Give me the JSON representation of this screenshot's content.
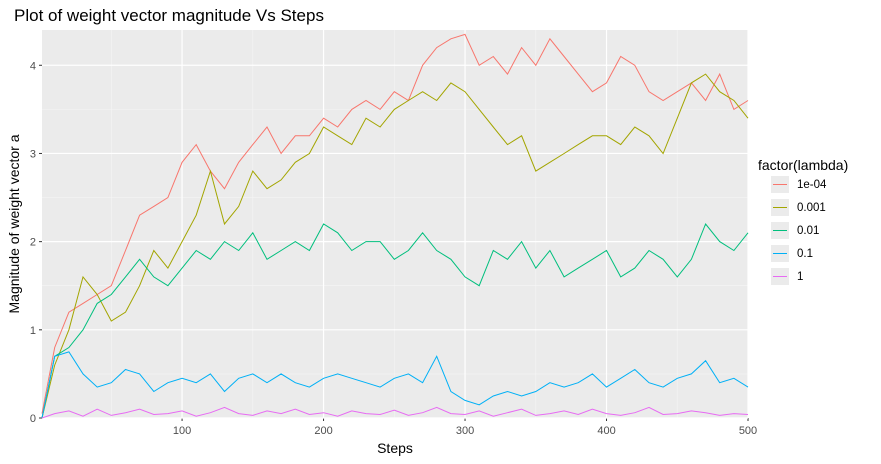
{
  "chart_data": {
    "type": "line",
    "title": "Plot of weight vector magnitude Vs Steps",
    "xlabel": "Steps",
    "ylabel": "Magnitude of weight vector a",
    "xlim": [
      1,
      500
    ],
    "ylim": [
      0,
      4.4
    ],
    "x_ticks": [
      100,
      200,
      300,
      400,
      500
    ],
    "y_ticks": [
      0,
      1,
      2,
      3,
      4
    ],
    "grid": true,
    "legend": {
      "title": "factor(lambda)",
      "position": "right"
    },
    "x": [
      1,
      10,
      20,
      30,
      40,
      50,
      60,
      70,
      80,
      90,
      100,
      110,
      120,
      130,
      140,
      150,
      160,
      170,
      180,
      190,
      200,
      210,
      220,
      230,
      240,
      250,
      260,
      270,
      280,
      290,
      300,
      310,
      320,
      330,
      340,
      350,
      360,
      370,
      380,
      390,
      400,
      410,
      420,
      430,
      440,
      450,
      460,
      470,
      480,
      490,
      500
    ],
    "series": [
      {
        "name": "1e-04",
        "color": "#F8766D",
        "values": [
          0.05,
          0.8,
          1.2,
          1.3,
          1.4,
          1.5,
          1.9,
          2.3,
          2.4,
          2.5,
          2.9,
          3.1,
          2.8,
          2.6,
          2.9,
          3.1,
          3.3,
          3.0,
          3.2,
          3.2,
          3.4,
          3.3,
          3.5,
          3.6,
          3.5,
          3.7,
          3.6,
          4.0,
          4.2,
          4.3,
          4.35,
          4.0,
          4.1,
          3.9,
          4.2,
          4.0,
          4.3,
          4.1,
          3.9,
          3.7,
          3.8,
          4.1,
          4.0,
          3.7,
          3.6,
          3.7,
          3.8,
          3.6,
          3.9,
          3.5,
          3.6
        ]
      },
      {
        "name": "0.001",
        "color": "#A3A500",
        "values": [
          0.0,
          0.6,
          1.0,
          1.6,
          1.4,
          1.1,
          1.2,
          1.5,
          1.9,
          1.7,
          2.0,
          2.3,
          2.8,
          2.2,
          2.4,
          2.8,
          2.6,
          2.7,
          2.9,
          3.0,
          3.3,
          3.2,
          3.1,
          3.4,
          3.3,
          3.5,
          3.6,
          3.7,
          3.6,
          3.8,
          3.7,
          3.5,
          3.3,
          3.1,
          3.2,
          2.8,
          2.9,
          3.0,
          3.1,
          3.2,
          3.2,
          3.1,
          3.3,
          3.2,
          3.0,
          3.4,
          3.8,
          3.9,
          3.7,
          3.6,
          3.4
        ]
      },
      {
        "name": "0.01",
        "color": "#00BF7D",
        "values": [
          0.0,
          0.7,
          0.8,
          1.0,
          1.3,
          1.4,
          1.6,
          1.8,
          1.6,
          1.5,
          1.7,
          1.9,
          1.8,
          2.0,
          1.9,
          2.1,
          1.8,
          1.9,
          2.0,
          1.9,
          2.2,
          2.1,
          1.9,
          2.0,
          2.0,
          1.8,
          1.9,
          2.1,
          1.9,
          1.8,
          1.6,
          1.5,
          1.9,
          1.8,
          2.0,
          1.7,
          1.9,
          1.6,
          1.7,
          1.8,
          1.9,
          1.6,
          1.7,
          1.9,
          1.8,
          1.6,
          1.8,
          2.2,
          2.0,
          1.9,
          2.1
        ]
      },
      {
        "name": "0.1",
        "color": "#00B0F6",
        "values": [
          0.0,
          0.7,
          0.75,
          0.5,
          0.35,
          0.4,
          0.55,
          0.5,
          0.3,
          0.4,
          0.45,
          0.4,
          0.5,
          0.3,
          0.45,
          0.5,
          0.4,
          0.5,
          0.4,
          0.35,
          0.45,
          0.5,
          0.45,
          0.4,
          0.35,
          0.45,
          0.5,
          0.4,
          0.7,
          0.3,
          0.2,
          0.15,
          0.25,
          0.3,
          0.25,
          0.3,
          0.4,
          0.35,
          0.4,
          0.5,
          0.35,
          0.45,
          0.55,
          0.4,
          0.35,
          0.45,
          0.5,
          0.65,
          0.4,
          0.45,
          0.35
        ]
      },
      {
        "name": "1",
        "color": "#E76BF3",
        "values": [
          0.0,
          0.05,
          0.08,
          0.02,
          0.1,
          0.03,
          0.06,
          0.1,
          0.04,
          0.05,
          0.08,
          0.02,
          0.06,
          0.12,
          0.05,
          0.03,
          0.08,
          0.05,
          0.1,
          0.04,
          0.06,
          0.02,
          0.08,
          0.05,
          0.04,
          0.09,
          0.03,
          0.06,
          0.12,
          0.05,
          0.04,
          0.08,
          0.02,
          0.06,
          0.1,
          0.03,
          0.05,
          0.08,
          0.04,
          0.1,
          0.05,
          0.03,
          0.06,
          0.12,
          0.04,
          0.05,
          0.08,
          0.06,
          0.03,
          0.05,
          0.04
        ]
      }
    ]
  }
}
